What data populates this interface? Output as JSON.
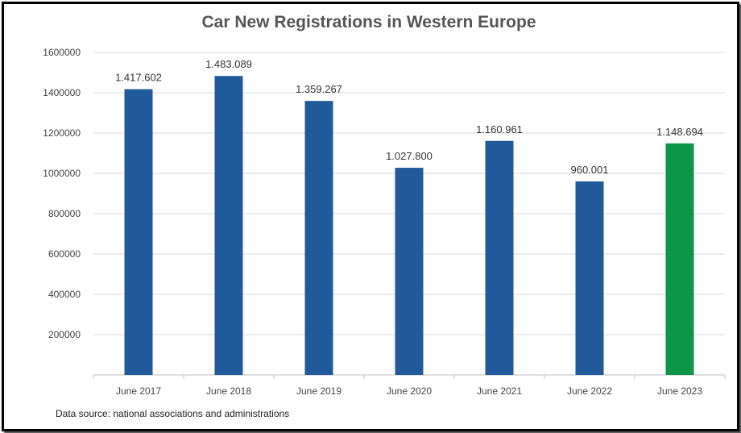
{
  "source_note": "Data source: national associations and administrations",
  "chart_data": {
    "type": "bar",
    "title": "Car New Registrations in Western Europe",
    "xlabel": "",
    "ylabel": "",
    "ylim": [
      0,
      1600000
    ],
    "yticks": [
      "200000",
      "400000",
      "600000",
      "800000",
      "1000000",
      "1200000",
      "1400000",
      "1600000"
    ],
    "categories": [
      "June 2017",
      "June 2018",
      "June 2019",
      "June 2020",
      "June 2021",
      "June 2022",
      "June 2023"
    ],
    "values": [
      1417602,
      1483089,
      1359267,
      1027800,
      1160961,
      960001,
      1148694
    ],
    "data_labels": [
      "1.417.602",
      "1.483.089",
      "1.359.267",
      "1.027.800",
      "1.160.961",
      "960.001",
      "1.148.694"
    ],
    "grid": true,
    "colors": {
      "bar": "#215A9A",
      "highlight": "#0E9648",
      "grid": "#D9D9D9",
      "axis": "#BFBFBF"
    },
    "highlight_index": 6
  }
}
